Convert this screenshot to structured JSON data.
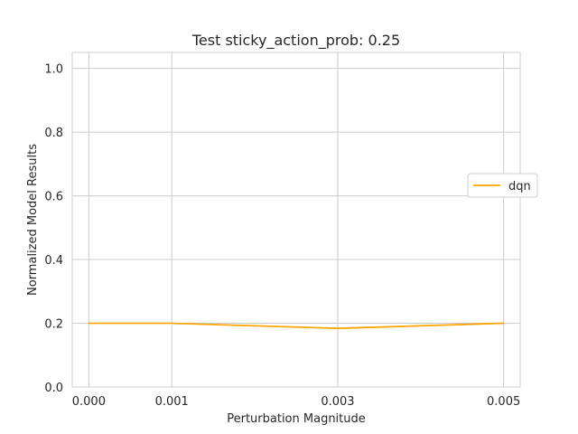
{
  "chart_data": {
    "type": "line",
    "title": "Test sticky_action_prob: 0.25",
    "xlabel": "Perturbation Magnitude",
    "ylabel": "Normalized Model Results",
    "x": [
      0.0,
      0.001,
      0.003,
      0.005
    ],
    "x_tick_labels": [
      "0.000",
      "0.001",
      "0.003",
      "0.005"
    ],
    "xlim": [
      -0.0002,
      0.0052
    ],
    "ylim": [
      0.0,
      1.05
    ],
    "y_ticks": [
      0.0,
      0.2,
      0.4,
      0.6,
      0.8,
      1.0
    ],
    "y_tick_labels": [
      "0.0",
      "0.2",
      "0.4",
      "0.6",
      "0.8",
      "1.0"
    ],
    "series": [
      {
        "name": "dqn",
        "color": "#FFA500",
        "values": [
          0.2,
          0.2,
          0.184,
          0.2
        ]
      }
    ],
    "grid": true,
    "legend_placement": "center-right"
  }
}
